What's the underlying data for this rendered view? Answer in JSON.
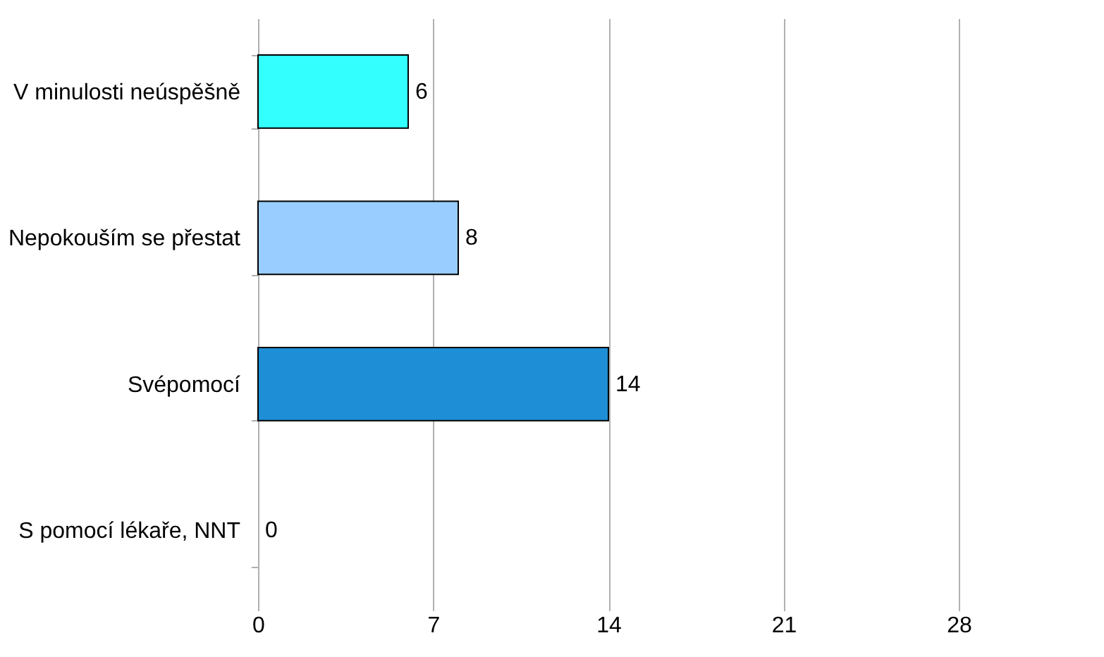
{
  "chart_data": {
    "type": "bar",
    "orientation": "horizontal",
    "categories": [
      "V minulosti neúspěšně",
      "Nepokouším se přestat",
      "Svépomocí",
      "S pomocí lékaře, NNT"
    ],
    "values": [
      6,
      8,
      14,
      0
    ],
    "colors": [
      "#33ffff",
      "#99ccff",
      "#1e8fd6",
      "#1e8fd6"
    ],
    "xlim": [
      0,
      28
    ],
    "xticks": [
      0,
      7,
      14,
      21,
      28
    ],
    "grid": "x",
    "data_labels": true
  }
}
